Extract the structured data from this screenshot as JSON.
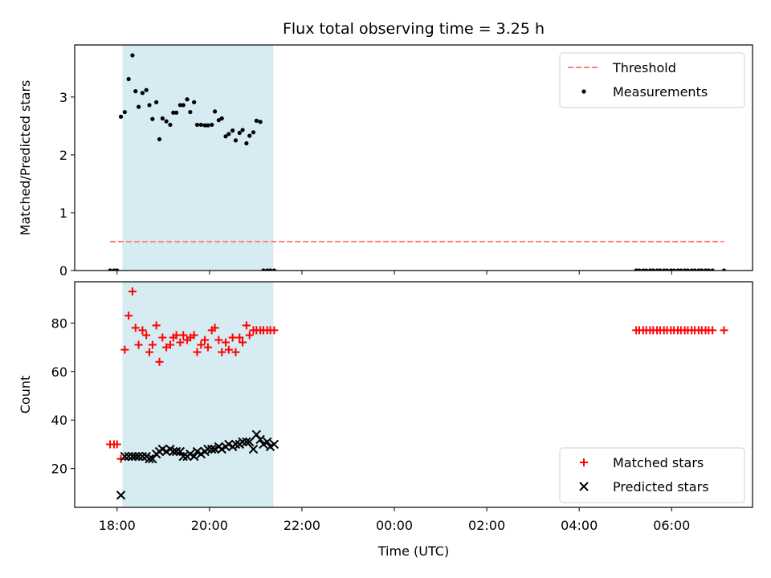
{
  "chart_data": [
    {
      "type": "scatter",
      "title": "Flux total observing time = 3.25 h",
      "xlabel": "",
      "ylabel": "Matched/Predicted stars",
      "xlim": [
        "17:05",
        "31:45"
      ],
      "ylim": [
        0,
        3.9
      ],
      "yticks": [
        0,
        1,
        2,
        3
      ],
      "xticks": [
        "18:00",
        "20:00",
        "22:00",
        "00:00",
        "02:00",
        "04:00",
        "06:00"
      ],
      "show_xticklabels": false,
      "highlight_span": [
        "18:07",
        "21:23"
      ],
      "highlight_color": "#add8e6",
      "legend_position": "top-right",
      "series": [
        {
          "name": "Threshold",
          "kind": "dashed-line",
          "color": "#ff7f7f",
          "x": [
            "17:51",
            "31:08"
          ],
          "y": [
            0.5,
            0.5
          ]
        },
        {
          "name": "Measurements",
          "kind": "dot",
          "color": "#000000",
          "x": [
            "17:51",
            "17:56",
            "18:00",
            "18:05",
            "18:10",
            "18:15",
            "18:20",
            "18:24",
            "18:28",
            "18:33",
            "18:38",
            "18:42",
            "18:46",
            "18:51",
            "18:55",
            "18:59",
            "19:04",
            "19:09",
            "19:13",
            "19:17",
            "19:22",
            "19:26",
            "19:31",
            "19:35",
            "19:40",
            "19:44",
            "19:49",
            "19:54",
            "19:58",
            "20:03",
            "20:07",
            "20:12",
            "20:16",
            "20:21",
            "20:25",
            "20:30",
            "20:34",
            "20:39",
            "20:43",
            "20:48",
            "20:52",
            "20:57",
            "21:01",
            "21:06",
            "21:10",
            "21:15",
            "21:19",
            "21:24",
            "29:14",
            "29:18",
            "29:23",
            "29:27",
            "29:32",
            "29:36",
            "29:41",
            "29:45",
            "29:50",
            "29:54",
            "29:59",
            "30:03",
            "30:08",
            "30:12",
            "30:17",
            "30:21",
            "30:26",
            "30:30",
            "30:35",
            "30:39",
            "30:44",
            "30:48",
            "30:53",
            "31:08"
          ],
          "y": [
            0,
            0,
            0,
            2.66,
            2.74,
            3.31,
            3.72,
            3.1,
            2.83,
            3.07,
            3.12,
            2.86,
            2.62,
            2.91,
            2.27,
            2.63,
            2.58,
            2.52,
            2.73,
            2.73,
            2.86,
            2.86,
            2.96,
            2.74,
            2.91,
            2.52,
            2.52,
            2.51,
            2.51,
            2.52,
            2.75,
            2.6,
            2.63,
            2.32,
            2.36,
            2.42,
            2.25,
            2.38,
            2.43,
            2.2,
            2.33,
            2.39,
            2.59,
            2.57,
            0,
            0,
            0,
            0,
            0,
            0,
            0,
            0,
            0,
            0,
            0,
            0,
            0,
            0,
            0,
            0,
            0,
            0,
            0,
            0,
            0,
            0,
            0,
            0,
            0,
            0,
            0,
            0
          ]
        }
      ]
    },
    {
      "type": "scatter",
      "title": "",
      "xlabel": "Time (UTC)",
      "ylabel": "Count",
      "xlim": [
        "17:05",
        "31:45"
      ],
      "ylim": [
        4,
        97
      ],
      "yticks": [
        20,
        40,
        60,
        80
      ],
      "xticks": [
        "18:00",
        "20:00",
        "22:00",
        "00:00",
        "02:00",
        "04:00",
        "06:00"
      ],
      "show_xticklabels": true,
      "highlight_span": [
        "18:07",
        "21:23"
      ],
      "highlight_color": "#add8e6",
      "legend_position": "bottom-right",
      "series": [
        {
          "name": "Matched stars",
          "kind": "plus",
          "color": "#ff0000",
          "x": [
            "17:51",
            "17:56",
            "18:00",
            "18:05",
            "18:10",
            "18:15",
            "18:20",
            "18:24",
            "18:28",
            "18:33",
            "18:38",
            "18:42",
            "18:46",
            "18:51",
            "18:55",
            "18:59",
            "19:04",
            "19:09",
            "19:13",
            "19:17",
            "19:22",
            "19:26",
            "19:31",
            "19:35",
            "19:40",
            "19:44",
            "19:49",
            "19:54",
            "19:58",
            "20:03",
            "20:07",
            "20:12",
            "20:16",
            "20:21",
            "20:25",
            "20:30",
            "20:34",
            "20:39",
            "20:43",
            "20:48",
            "20:52",
            "20:57",
            "21:01",
            "21:06",
            "21:10",
            "21:15",
            "21:19",
            "21:24",
            "29:14",
            "29:18",
            "29:23",
            "29:27",
            "29:32",
            "29:36",
            "29:41",
            "29:45",
            "29:50",
            "29:54",
            "29:59",
            "30:03",
            "30:08",
            "30:12",
            "30:17",
            "30:21",
            "30:26",
            "30:30",
            "30:35",
            "30:39",
            "30:44",
            "30:48",
            "30:53",
            "31:08"
          ],
          "y": [
            30,
            30,
            30,
            24,
            69,
            83,
            93,
            78,
            71,
            77,
            75,
            68,
            71,
            79,
            64,
            74,
            70,
            71,
            74,
            75,
            72,
            75,
            73,
            74,
            75,
            68,
            71,
            73,
            70,
            77,
            78,
            73,
            68,
            72,
            69,
            74,
            68,
            74,
            72,
            79,
            75,
            77,
            77,
            77,
            77,
            77,
            77,
            77,
            77,
            77,
            77,
            77,
            77,
            77,
            77,
            77,
            77,
            77,
            77,
            77,
            77,
            77,
            77,
            77,
            77,
            77,
            77,
            77,
            77,
            77,
            77,
            77
          ]
        },
        {
          "name": "Predicted stars",
          "kind": "cross",
          "color": "#000000",
          "x": [
            "18:05",
            "18:10",
            "18:15",
            "18:20",
            "18:24",
            "18:28",
            "18:33",
            "18:38",
            "18:42",
            "18:46",
            "18:51",
            "18:55",
            "18:59",
            "19:04",
            "19:09",
            "19:13",
            "19:17",
            "19:22",
            "19:26",
            "19:31",
            "19:35",
            "19:40",
            "19:44",
            "19:49",
            "19:54",
            "19:58",
            "20:03",
            "20:07",
            "20:12",
            "20:16",
            "20:21",
            "20:25",
            "20:30",
            "20:34",
            "20:39",
            "20:43",
            "20:48",
            "20:52",
            "20:57",
            "21:01",
            "21:06",
            "21:10",
            "21:15",
            "21:19",
            "21:24"
          ],
          "y": [
            9,
            25,
            25,
            25,
            25,
            25,
            25,
            25,
            24,
            24,
            26,
            27,
            28,
            27,
            28,
            27,
            27,
            27,
            25,
            25,
            26,
            25,
            27,
            26,
            27,
            28,
            28,
            28,
            29,
            28,
            29,
            30,
            29,
            30,
            30,
            31,
            31,
            31,
            28,
            34,
            32,
            30,
            31,
            29,
            30
          ]
        }
      ]
    }
  ]
}
